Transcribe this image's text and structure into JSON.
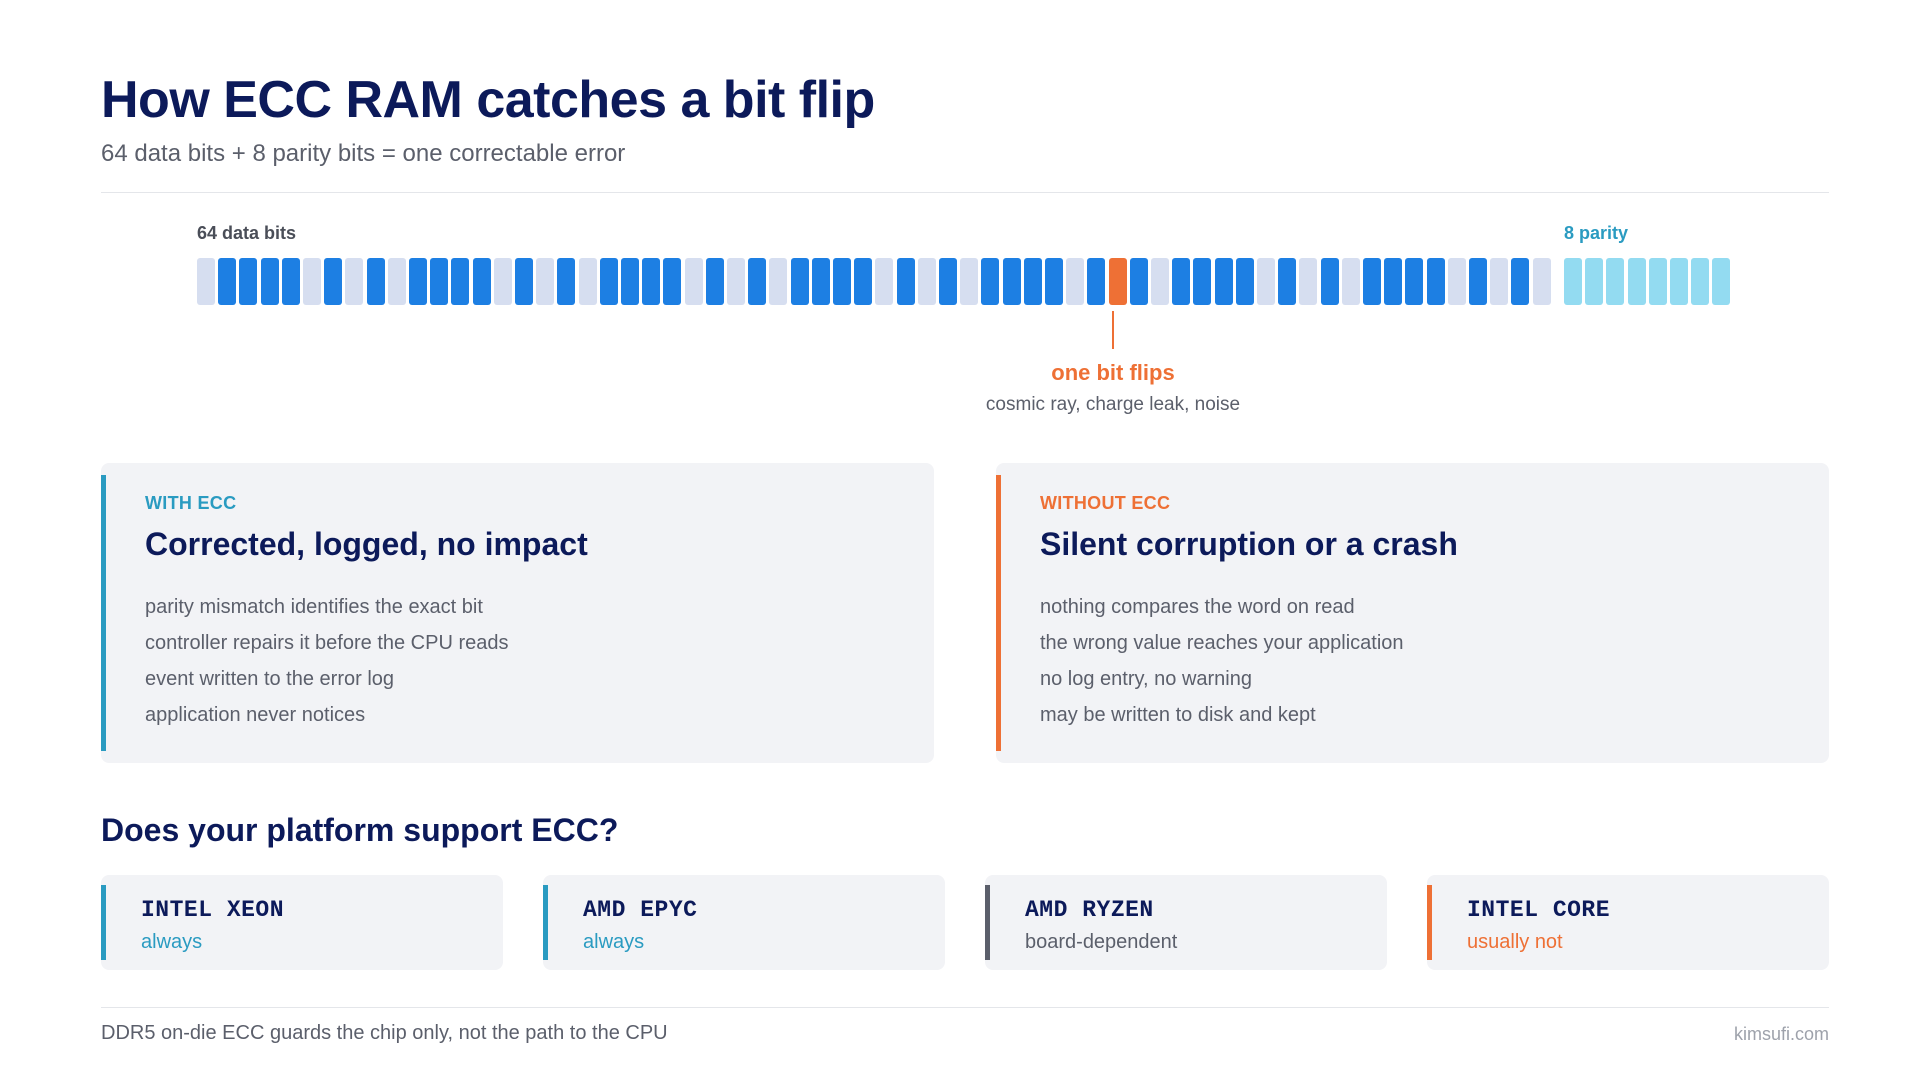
{
  "header": {
    "title": "How ECC RAM catches a bit flip",
    "subtitle": "64 data bits + 8 parity bits = one correctable error"
  },
  "bits": {
    "data_label": "64 data bits",
    "parity_label": "8 parity",
    "data_bits": [
      0,
      1,
      1,
      1,
      1,
      0,
      1,
      0,
      1,
      0,
      1,
      1,
      1,
      1,
      0,
      1,
      0,
      1,
      0,
      1,
      1,
      1,
      1,
      0,
      1,
      0,
      1,
      0,
      1,
      1,
      1,
      1,
      0,
      1,
      0,
      1,
      0,
      1,
      1,
      1,
      1,
      0,
      1,
      2,
      1,
      0,
      1,
      1,
      1,
      1,
      0,
      1,
      0,
      1,
      0,
      1,
      1,
      1,
      1,
      0,
      1,
      0,
      1,
      0
    ],
    "parity_bits": [
      1,
      1,
      1,
      1,
      1,
      1,
      1,
      1
    ],
    "flip_index": 43,
    "flip_title": "one bit flips",
    "flip_subtitle": "cosmic ray, charge leak, noise"
  },
  "with_ecc": {
    "eyebrow": "WITH ECC",
    "heading": "Corrected, logged, no impact",
    "points": [
      "parity mismatch identifies the exact bit",
      "controller repairs it before the CPU reads",
      "event written to the error log",
      "application never notices"
    ]
  },
  "without_ecc": {
    "eyebrow": "WITHOUT ECC",
    "heading": "Silent corruption or a crash",
    "points": [
      "nothing compares the word on read",
      "the wrong value reaches your application",
      "no log entry, no warning",
      "may be written to disk and kept"
    ]
  },
  "platforms": {
    "title": "Does your platform support ECC?",
    "items": [
      {
        "name": "INTEL XEON",
        "status": "always",
        "color": "#2a9bc1"
      },
      {
        "name": "AMD EPYC",
        "status": "always",
        "color": "#2a9bc1"
      },
      {
        "name": "AMD RYZEN",
        "status": "board-dependent",
        "color": "#5b5f6b",
        "bar": "#5b5f6b"
      },
      {
        "name": "INTEL CORE",
        "status": "usually not",
        "color": "#ee7035"
      }
    ]
  },
  "footer": {
    "note": "DDR5 on-die ECC guards the chip only, not the path to the CPU",
    "brand": "kimsufi.com"
  },
  "colors": {
    "navy": "#0c1a5a",
    "blue_bit": "#1d7fe3",
    "zero_bit": "#d6def0",
    "parity_bit": "#93dbf1",
    "accent_teal": "#2a9bc1",
    "accent_orange": "#ee7035"
  }
}
